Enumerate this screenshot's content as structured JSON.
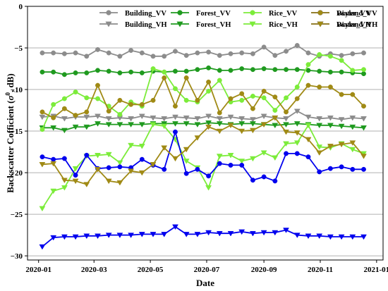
{
  "chart_data": {
    "type": "line",
    "xlabel": "Date",
    "ylabel": "Backscatter Cofficient (σ⁰, dB)",
    "ylabel_parts": [
      "Backscatter Cofficient (",
      "σ",
      "0",
      ", dB)"
    ],
    "xlim": [
      "2019-12-20",
      "2021-01-08"
    ],
    "ylim": [
      -30.5,
      0
    ],
    "x_ticks": [
      {
        "date": "2020-01-01",
        "label": "2020-01"
      },
      {
        "date": "2020-03-01",
        "label": "2020-03"
      },
      {
        "date": "2020-05-01",
        "label": "2020-05"
      },
      {
        "date": "2020-07-01",
        "label": "2020-07"
      },
      {
        "date": "2020-09-01",
        "label": "2020-09"
      },
      {
        "date": "2020-11-01",
        "label": "2020-11"
      },
      {
        "date": "2021-01-01",
        "label": "2021-01"
      }
    ],
    "y_ticks": [
      {
        "value": 0,
        "label": "0"
      },
      {
        "value": -5,
        "label": "−5"
      },
      {
        "value": -10,
        "label": "−10"
      },
      {
        "value": -15,
        "label": "−15"
      },
      {
        "value": -20,
        "label": "−20"
      },
      {
        "value": -25,
        "label": "−25"
      },
      {
        "value": -30,
        "label": "−30"
      }
    ],
    "grid": "horizontal",
    "legend_position": "top",
    "x": [
      "2020-01-05",
      "2020-01-17",
      "2020-01-29",
      "2020-02-10",
      "2020-02-22",
      "2020-03-05",
      "2020-03-17",
      "2020-03-29",
      "2020-04-10",
      "2020-04-22",
      "2020-05-04",
      "2020-05-16",
      "2020-05-28",
      "2020-06-09",
      "2020-06-21",
      "2020-07-03",
      "2020-07-15",
      "2020-07-27",
      "2020-08-08",
      "2020-08-20",
      "2020-09-01",
      "2020-09-13",
      "2020-09-25",
      "2020-10-07",
      "2020-10-19",
      "2020-10-31",
      "2020-11-12",
      "2020-11-24",
      "2020-12-06",
      "2020-12-18"
    ],
    "series": [
      {
        "name": "Building_VV",
        "color": "#8c8c8c",
        "marker": "circle",
        "values": [
          -5.6,
          -5.6,
          -5.7,
          -5.6,
          -6.0,
          -5.2,
          -5.6,
          -6.0,
          -5.3,
          -5.6,
          -6.0,
          -6.0,
          -5.4,
          -5.9,
          -5.6,
          -5.5,
          -5.9,
          -5.7,
          -5.6,
          -5.7,
          -4.9,
          -5.9,
          -5.4,
          -4.7,
          -5.6,
          -6.0,
          -5.7,
          -5.9,
          -5.7,
          -5.6
        ]
      },
      {
        "name": "Building_VH",
        "color": "#8c8c8c",
        "marker": "triangle-down",
        "values": [
          -13.3,
          -13.2,
          -13.5,
          -13.3,
          -13.3,
          -13.2,
          -13.5,
          -13.4,
          -13.5,
          -13.2,
          -13.4,
          -13.5,
          -13.3,
          -13.4,
          -13.5,
          -13.2,
          -13.5,
          -13.3,
          -13.5,
          -13.6,
          -13.2,
          -13.4,
          -13.5,
          -12.6,
          -13.3,
          -13.5,
          -13.4,
          -13.6,
          -13.4,
          -13.5
        ]
      },
      {
        "name": "Forest_VV",
        "color": "#1f9a1f",
        "marker": "circle",
        "values": [
          -7.9,
          -7.9,
          -8.2,
          -8.0,
          -8.0,
          -7.7,
          -7.8,
          -8.0,
          -7.9,
          -8.0,
          -7.8,
          -7.9,
          -7.8,
          -7.8,
          -7.6,
          -7.4,
          -7.7,
          -7.7,
          -7.5,
          -7.6,
          -7.5,
          -7.6,
          -7.6,
          -7.6,
          -7.7,
          -7.8,
          -7.9,
          -7.9,
          -8.0,
          -8.1
        ]
      },
      {
        "name": "Forest_VH",
        "color": "#1f9a1f",
        "marker": "triangle-down",
        "values": [
          -14.6,
          -14.6,
          -14.9,
          -14.5,
          -14.5,
          -14.1,
          -14.2,
          -14.2,
          -14.2,
          -14.2,
          -14.1,
          -14.1,
          -14.1,
          -14.1,
          -14.2,
          -14.0,
          -14.1,
          -14.2,
          -14.1,
          -14.1,
          -14.2,
          -14.3,
          -14.2,
          -14.1,
          -14.2,
          -14.3,
          -14.3,
          -14.4,
          -14.5,
          -14.6
        ]
      },
      {
        "name": "Rice_VV",
        "color": "#7cec3a",
        "marker": "circle",
        "values": [
          -14.8,
          -11.8,
          -11.1,
          -10.3,
          -11.0,
          -11.1,
          -12.0,
          -13.0,
          -11.5,
          -12.0,
          -7.5,
          -7.9,
          -9.9,
          -11.3,
          -11.5,
          -10.2,
          -8.9,
          -11.5,
          -11.3,
          -10.8,
          -11.0,
          -12.5,
          -11.0,
          -9.7,
          -7.0,
          -5.8,
          -6.0,
          -6.5,
          -7.7,
          -7.6
        ]
      },
      {
        "name": "Rice_VH",
        "color": "#7cec3a",
        "marker": "triangle-down",
        "values": [
          -24.3,
          -22.2,
          -21.8,
          -19.5,
          -18.0,
          -17.9,
          -17.8,
          -18.8,
          -16.7,
          -16.8,
          -14.2,
          -14.4,
          -16.0,
          -18.6,
          -19.4,
          -21.8,
          -18.0,
          -17.9,
          -18.6,
          -18.3,
          -17.6,
          -18.2,
          -16.5,
          -16.4,
          -14.3,
          -16.9,
          -17.0,
          -16.5,
          -17.2,
          -17.7
        ]
      },
      {
        "name": "Water_VV",
        "color": "#0000ee",
        "marker": "circle",
        "values": [
          -18.1,
          -18.4,
          -18.3,
          -20.3,
          -17.9,
          -19.5,
          -19.4,
          -19.3,
          -19.4,
          -18.4,
          -19.1,
          -19.6,
          -15.1,
          -20.1,
          -19.6,
          -20.4,
          -18.9,
          -19.1,
          -19.1,
          -20.9,
          -20.5,
          -21.0,
          -17.7,
          -17.7,
          -18.1,
          -19.9,
          -19.5,
          -19.3,
          -19.6,
          -19.6
        ]
      },
      {
        "name": "Water_VH",
        "color": "#0000ee",
        "marker": "triangle-down",
        "values": [
          -28.9,
          -27.8,
          -27.7,
          -27.7,
          -27.6,
          -27.6,
          -27.5,
          -27.5,
          -27.5,
          -27.4,
          -27.4,
          -27.4,
          -26.5,
          -27.4,
          -27.4,
          -27.2,
          -27.3,
          -27.3,
          -27.1,
          -27.3,
          -27.2,
          -27.2,
          -26.9,
          -27.5,
          -27.6,
          -27.6,
          -27.7,
          -27.7,
          -27.7,
          -27.7
        ]
      },
      {
        "name": "Dryland_VV",
        "color": "#a08a15",
        "marker": "circle",
        "values": [
          -12.7,
          -13.4,
          -12.3,
          -13.1,
          -12.7,
          -9.5,
          -12.6,
          -11.3,
          -11.8,
          -11.8,
          -11.3,
          -8.6,
          -12.0,
          -8.6,
          -11.3,
          -9.1,
          -12.8,
          -11.1,
          -10.5,
          -12.3,
          -10.2,
          -10.9,
          -12.7,
          -11.1,
          -9.5,
          -9.7,
          -9.7,
          -10.6,
          -10.6,
          -12.0
        ]
      },
      {
        "name": "Dryland_VH",
        "color": "#a08a15",
        "marker": "triangle-down",
        "values": [
          -19.0,
          -18.9,
          -20.9,
          -21.0,
          -21.4,
          -19.6,
          -21.0,
          -21.2,
          -19.8,
          -20.0,
          -19.0,
          -17.0,
          -18.3,
          -17.2,
          -15.8,
          -14.5,
          -15.0,
          -14.3,
          -15.0,
          -14.9,
          -14.2,
          -13.4,
          -15.1,
          -15.2,
          -16.0,
          -17.6,
          -16.8,
          -16.6,
          -16.4,
          -18.0
        ]
      }
    ]
  }
}
